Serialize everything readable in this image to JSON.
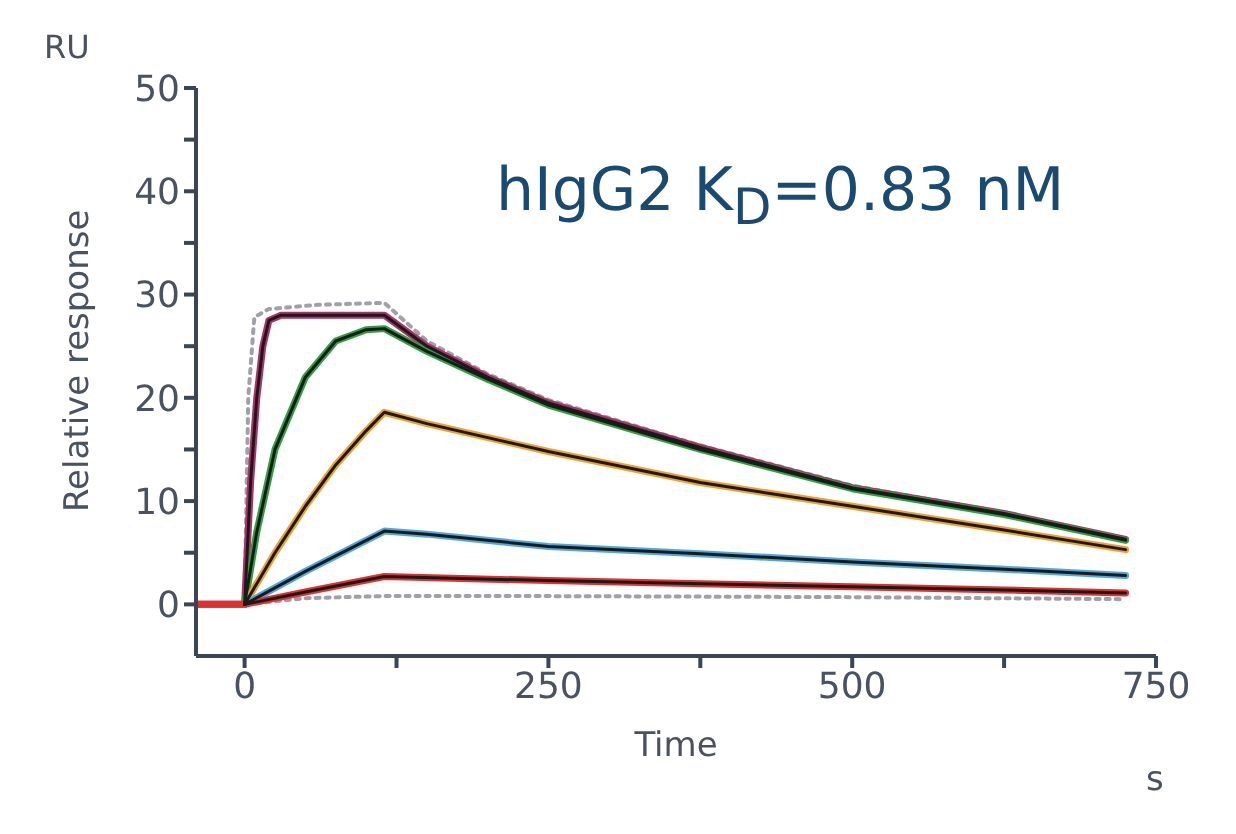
{
  "chart_data": {
    "type": "line",
    "xlabel": "Time",
    "ylabel": "Relative response",
    "annotations": [
      "hIgG2 K$_{D}$=0.83 nM",
      "RU",
      "s"
    ],
    "xlim": [
      -40,
      750
    ],
    "xticks": [
      0,
      {
        "value": 125,
        "label": null
      },
      250,
      {
        "value": 375,
        "label": null
      },
      500,
      {
        "value": 625,
        "label": null
      },
      750
    ],
    "ylim": [
      -5,
      50
    ],
    "yticks": [
      0,
      {
        "value": 5,
        "label": null
      },
      10,
      {
        "value": 15,
        "label": null
      },
      20,
      {
        "value": 25,
        "label": null
      },
      30,
      {
        "value": 35,
        "label": null
      },
      40,
      {
        "value": 45,
        "label": null
      },
      50
    ],
    "grid": false,
    "legend": false,
    "marker": "none",
    "series": [
      {
        "color": "#a0a0a8",
        "line_style": "dotted",
        "x": [
          -40,
          0,
          3,
          8,
          20,
          60,
          115,
          150,
          200,
          250,
          375,
          500,
          625,
          725
        ],
        "values": [
          0,
          0,
          20,
          27.8,
          28.6,
          29,
          29.2,
          25.5,
          22.3,
          19.8,
          15.4,
          11.5,
          8.9,
          6.2
        ]
      },
      {
        "color": "#a0a0a8",
        "line_style": "dotted",
        "x": [
          -40,
          0,
          50,
          115,
          250,
          500,
          725
        ],
        "values": [
          0,
          0,
          0.6,
          0.8,
          0.8,
          0.7,
          0.5
        ]
      },
      {
        "color": "#b0306a",
        "line_style": "solid",
        "x": [
          -40,
          0,
          5,
          10,
          15,
          20,
          30,
          115,
          150,
          200,
          250,
          375,
          500,
          625,
          725
        ],
        "values": [
          0,
          0,
          12,
          20,
          25,
          27.5,
          28,
          28,
          25,
          22,
          19.5,
          15.2,
          11.3,
          8.8,
          6.3
        ]
      },
      {
        "color": "#2ea040",
        "line_style": "solid",
        "x": [
          0,
          10,
          25,
          50,
          75,
          100,
          115,
          150,
          200,
          250,
          375,
          500,
          625,
          725
        ],
        "values": [
          0,
          7,
          15,
          22,
          25.5,
          26.6,
          26.7,
          24.5,
          21.8,
          19.3,
          15,
          11.2,
          8.7,
          6.2
        ]
      },
      {
        "color": "#f0a030",
        "line_style": "solid",
        "x": [
          0,
          25,
          50,
          75,
          100,
          115,
          150,
          250,
          375,
          500,
          625,
          725
        ],
        "values": [
          0,
          5,
          9.5,
          13.5,
          16.8,
          18.6,
          17.5,
          14.8,
          11.8,
          9.5,
          7.2,
          5.3
        ]
      },
      {
        "color": "#4fa8e0",
        "line_style": "solid",
        "x": [
          0,
          50,
          115,
          150,
          250,
          375,
          500,
          625,
          725
        ],
        "values": [
          0,
          3.2,
          7.1,
          6.8,
          5.6,
          4.9,
          4.1,
          3.4,
          2.8
        ]
      },
      {
        "color": "#e03030",
        "line_style": "solid",
        "x": [
          -40,
          0,
          50,
          115,
          250,
          375,
          500,
          625,
          725
        ],
        "values": [
          0,
          0,
          1.2,
          2.7,
          2.3,
          2,
          1.7,
          1.4,
          1.1
        ]
      },
      {
        "color": "#1a1a1a",
        "line_style": "solid",
        "x": [
          0,
          5,
          10,
          15,
          20,
          30,
          115,
          150,
          200,
          250,
          375,
          500,
          625,
          725
        ],
        "values": [
          0,
          12,
          20,
          25,
          27.5,
          28,
          28,
          25,
          22,
          19.5,
          15.2,
          11.3,
          8.8,
          6.3
        ]
      },
      {
        "color": "#1a1a1a",
        "line_style": "solid",
        "x": [
          0,
          10,
          25,
          50,
          75,
          100,
          115,
          150,
          200,
          250,
          375,
          500,
          625,
          725
        ],
        "values": [
          0,
          7,
          15,
          22,
          25.5,
          26.6,
          26.7,
          24.5,
          21.8,
          19.3,
          15,
          11.2,
          8.7,
          6.2
        ]
      },
      {
        "color": "#1a1a1a",
        "line_style": "solid",
        "x": [
          0,
          25,
          50,
          75,
          100,
          115,
          150,
          250,
          375,
          500,
          625,
          725
        ],
        "values": [
          0,
          5,
          9.5,
          13.5,
          16.8,
          18.6,
          17.5,
          14.8,
          11.8,
          9.5,
          7.2,
          5.3
        ]
      },
      {
        "color": "#1a1a1a",
        "line_style": "solid",
        "x": [
          0,
          50,
          115,
          150,
          250,
          375,
          500,
          625,
          725
        ],
        "values": [
          0,
          3.2,
          7.1,
          6.8,
          5.6,
          4.9,
          4.1,
          3.4,
          2.8
        ]
      },
      {
        "color": "#1a1a1a",
        "line_style": "solid",
        "x": [
          0,
          50,
          115,
          250,
          375,
          500,
          625,
          725
        ],
        "values": [
          0,
          1.2,
          2.7,
          2.3,
          2,
          1.7,
          1.4,
          1.1
        ]
      }
    ]
  }
}
